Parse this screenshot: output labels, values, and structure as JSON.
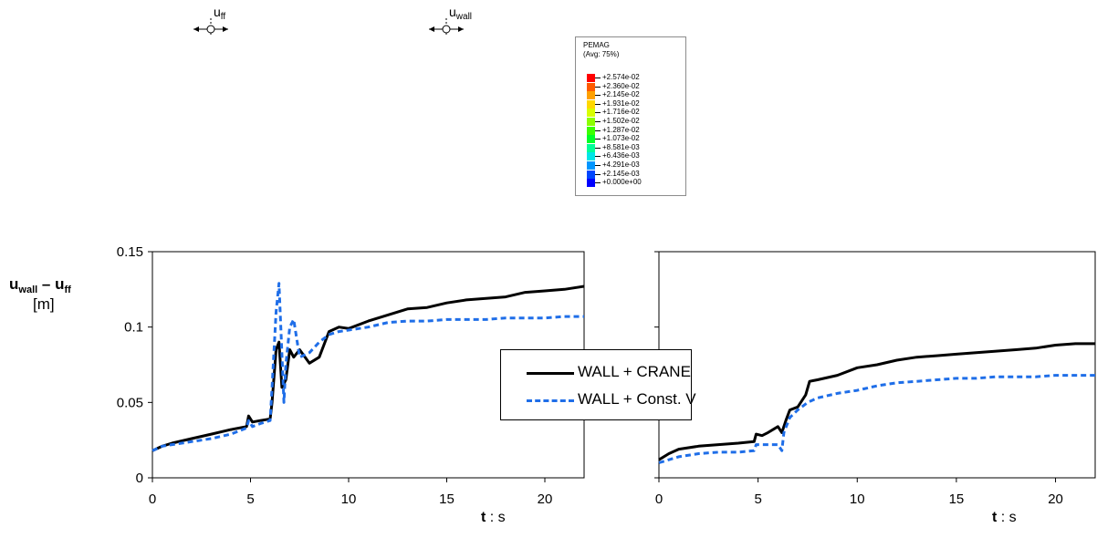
{
  "symbols": {
    "u_ff": {
      "base": "u",
      "sub": "ff"
    },
    "u_wall": {
      "base": "u",
      "sub": "wall"
    }
  },
  "contour_legend": {
    "title": "PEMAG",
    "subtitle": "(Avg: 75%)",
    "values": [
      "+2.574e-02",
      "+2.360e-02",
      "+2.145e-02",
      "+1.931e-02",
      "+1.716e-02",
      "+1.502e-02",
      "+1.287e-02",
      "+1.073e-02",
      "+8.581e-03",
      "+6.436e-03",
      "+4.291e-03",
      "+2.145e-03",
      "+0.000e+00"
    ],
    "colors": [
      "#ff0000",
      "#ff5a00",
      "#ffa000",
      "#ffd800",
      "#d8ff00",
      "#8cff00",
      "#3cff00",
      "#00ff28",
      "#00ff96",
      "#00e6e6",
      "#0096ff",
      "#0046ff",
      "#0000ff"
    ]
  },
  "y_label": {
    "prefix": "u",
    "sub1": "wall",
    "dash": " – ",
    "prefix2": "u",
    "sub2": "ff",
    "unit": "[m]"
  },
  "x_label": {
    "bold": "t",
    "rest": " : s"
  },
  "legend": [
    {
      "label": "WALL + CRANE",
      "color": "#000000",
      "style": "solid"
    },
    {
      "label": "WALL + Const. V",
      "color": "#1f6ee8",
      "style": "dashed"
    }
  ],
  "chart_data": [
    {
      "type": "line",
      "xlim": [
        0,
        22
      ],
      "ylim": [
        0,
        0.15
      ],
      "xticks": [
        "0",
        "5",
        "10",
        "15",
        "20"
      ],
      "yticks": [
        "0",
        "0.05",
        "0.1",
        "0.15"
      ],
      "xlabel": "t : s",
      "ylabel": "u_wall – u_ff [m]",
      "grid": false,
      "series": [
        {
          "name": "WALL + CRANE",
          "color": "#000000",
          "dash": "",
          "x": [
            0,
            0.5,
            1,
            2,
            3,
            4,
            4.8,
            4.9,
            5.1,
            5.5,
            6,
            6.1,
            6.3,
            6.45,
            6.6,
            6.8,
            7,
            7.2,
            7.5,
            8,
            8.5,
            9,
            9.5,
            10,
            11,
            12,
            13,
            14,
            15,
            16,
            17,
            18,
            19,
            20,
            21,
            22
          ],
          "y": [
            0.018,
            0.021,
            0.023,
            0.026,
            0.029,
            0.032,
            0.034,
            0.041,
            0.037,
            0.038,
            0.039,
            0.05,
            0.085,
            0.09,
            0.06,
            0.065,
            0.085,
            0.08,
            0.085,
            0.076,
            0.08,
            0.097,
            0.1,
            0.099,
            0.104,
            0.108,
            0.112,
            0.113,
            0.116,
            0.118,
            0.119,
            0.12,
            0.123,
            0.124,
            0.125,
            0.127
          ]
        },
        {
          "name": "WALL + Const. V",
          "color": "#1f6ee8",
          "dash": "6,4",
          "x": [
            0,
            0.5,
            1,
            2,
            3,
            4,
            4.8,
            4.9,
            5.1,
            5.5,
            6,
            6.1,
            6.3,
            6.45,
            6.7,
            6.8,
            7,
            7.2,
            7.5,
            8,
            8.5,
            9,
            9.5,
            10,
            11,
            12,
            13,
            14,
            15,
            16,
            17,
            18,
            19,
            20,
            21,
            22
          ],
          "y": [
            0.018,
            0.021,
            0.022,
            0.024,
            0.026,
            0.029,
            0.033,
            0.038,
            0.034,
            0.036,
            0.038,
            0.06,
            0.11,
            0.129,
            0.05,
            0.075,
            0.1,
            0.105,
            0.08,
            0.083,
            0.09,
            0.095,
            0.097,
            0.098,
            0.1,
            0.103,
            0.104,
            0.104,
            0.105,
            0.105,
            0.105,
            0.106,
            0.106,
            0.106,
            0.107,
            0.107
          ]
        }
      ]
    },
    {
      "type": "line",
      "xlim": [
        0,
        22
      ],
      "ylim": [
        0,
        0.15
      ],
      "xticks": [
        "0",
        "5",
        "10",
        "15",
        "20"
      ],
      "yticks": [],
      "xlabel": "t : s",
      "grid": false,
      "series": [
        {
          "name": "WALL + CRANE",
          "color": "#000000",
          "dash": "",
          "x": [
            0,
            0.5,
            1,
            2,
            3,
            4,
            4.8,
            4.9,
            5.2,
            5.5,
            6,
            6.2,
            6.4,
            6.6,
            7,
            7.4,
            7.6,
            8,
            9,
            10,
            11,
            12,
            13,
            14,
            15,
            16,
            17,
            18,
            19,
            20,
            21,
            22
          ],
          "y": [
            0.012,
            0.016,
            0.019,
            0.021,
            0.022,
            0.023,
            0.024,
            0.029,
            0.028,
            0.03,
            0.034,
            0.03,
            0.038,
            0.045,
            0.047,
            0.055,
            0.064,
            0.065,
            0.068,
            0.073,
            0.075,
            0.078,
            0.08,
            0.081,
            0.082,
            0.083,
            0.084,
            0.085,
            0.086,
            0.088,
            0.089,
            0.089
          ]
        },
        {
          "name": "WALL + Const. V",
          "color": "#1f6ee8",
          "dash": "6,4",
          "x": [
            0,
            0.5,
            1,
            2,
            3,
            4,
            4.8,
            4.9,
            5.5,
            6,
            6.2,
            6.3,
            6.6,
            7,
            7.5,
            8,
            9,
            10,
            11,
            12,
            13,
            14,
            15,
            16,
            17,
            18,
            19,
            20,
            21,
            22
          ],
          "y": [
            0.01,
            0.012,
            0.014,
            0.016,
            0.017,
            0.017,
            0.018,
            0.022,
            0.022,
            0.022,
            0.018,
            0.03,
            0.04,
            0.045,
            0.05,
            0.053,
            0.056,
            0.058,
            0.061,
            0.063,
            0.064,
            0.065,
            0.066,
            0.066,
            0.067,
            0.067,
            0.067,
            0.068,
            0.068,
            0.068
          ]
        }
      ]
    }
  ]
}
